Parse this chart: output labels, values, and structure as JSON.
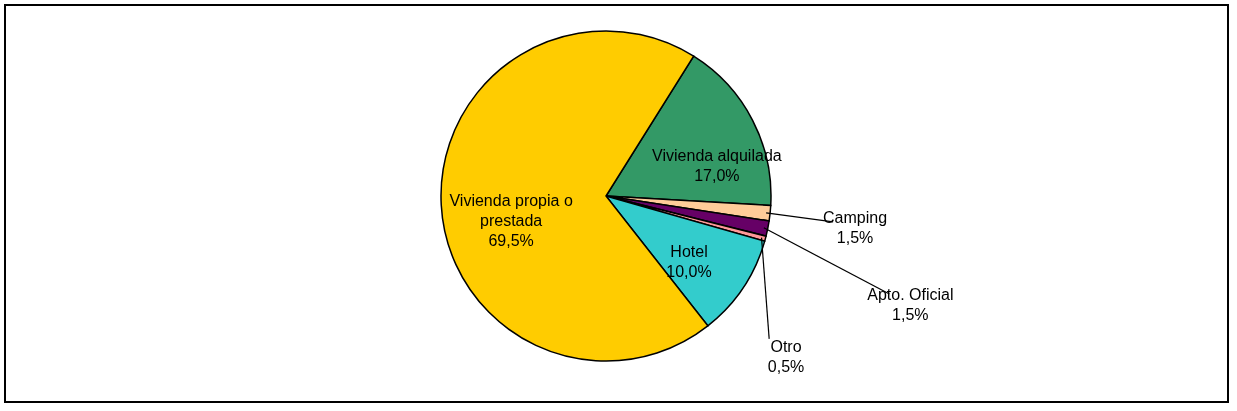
{
  "chart_data": {
    "type": "pie",
    "categories": [
      "Vivienda alquilada",
      "Camping",
      "Apto. Oficial",
      "Otro",
      "Hotel",
      "Vivienda propia o prestada"
    ],
    "values": [
      17.0,
      1.5,
      1.5,
      0.5,
      10.0,
      69.5
    ],
    "colors": [
      "#339966",
      "#ffcc99",
      "#660066",
      "#ff9999",
      "#33cccc",
      "#ffcc00"
    ],
    "value_labels": [
      "17,0%",
      "1,5%",
      "1,5%",
      "0,5%",
      "10,0%",
      "69,5%"
    ]
  }
}
